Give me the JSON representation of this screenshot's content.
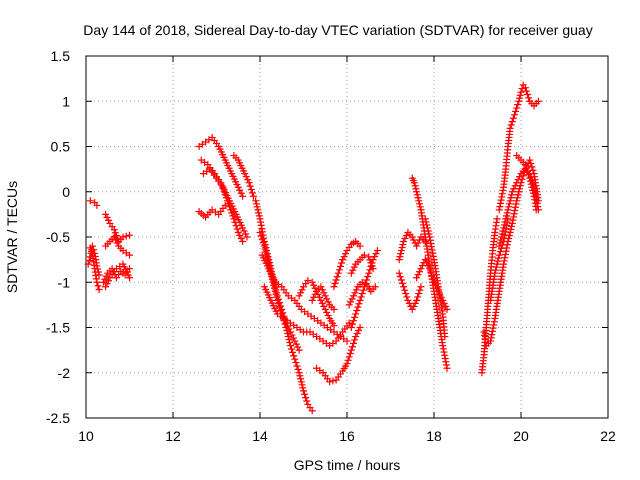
{
  "chart_data": {
    "type": "scatter",
    "title": "Day 144 of 2018, Sidereal Day-to-day VTEC variation (SDTVAR) for receiver guay",
    "xlabel": "GPS time / hours",
    "ylabel": "SDTVAR / TECUs",
    "xlim": [
      10,
      22
    ],
    "ylim": [
      -2.5,
      1.5
    ],
    "xticks": [
      10,
      12,
      14,
      16,
      18,
      20,
      22
    ],
    "xtick_labels": [
      "10",
      "12",
      "14",
      "16",
      "18",
      "20",
      "22"
    ],
    "yticks": [
      -2.5,
      -2,
      -1.5,
      -1,
      -0.5,
      0,
      0.5,
      1,
      1.5
    ],
    "ytick_labels": [
      "-2.5",
      "-2",
      "-1.5",
      "-1",
      "-0.5",
      "0",
      "0.5",
      "1",
      "1.5"
    ],
    "grid": true,
    "marker": "+",
    "color": "#ff0000",
    "series_paths": [
      [
        [
          10.1,
          -0.1
        ],
        [
          10.2,
          -0.12
        ],
        [
          10.25,
          -0.15
        ]
      ],
      [
        [
          10.1,
          -0.62
        ],
        [
          10.15,
          -0.7
        ],
        [
          10.2,
          -0.85
        ],
        [
          10.25,
          -1.0
        ],
        [
          10.3,
          -1.08
        ]
      ],
      [
        [
          10.05,
          -0.8
        ],
        [
          10.1,
          -0.72
        ],
        [
          10.15,
          -0.6
        ],
        [
          10.2,
          -0.68
        ],
        [
          10.25,
          -0.82
        ],
        [
          10.3,
          -0.92
        ]
      ],
      [
        [
          10.45,
          -0.25
        ],
        [
          10.55,
          -0.35
        ],
        [
          10.65,
          -0.42
        ],
        [
          10.75,
          -0.55
        ],
        [
          10.85,
          -0.5
        ],
        [
          11.0,
          -0.48
        ]
      ],
      [
        [
          10.45,
          -0.6
        ],
        [
          10.55,
          -0.55
        ],
        [
          10.65,
          -0.5
        ],
        [
          10.75,
          -0.6
        ],
        [
          10.85,
          -0.65
        ],
        [
          11.0,
          -0.7
        ]
      ],
      [
        [
          10.4,
          -1.0
        ],
        [
          10.5,
          -0.9
        ],
        [
          10.6,
          -0.85
        ],
        [
          10.7,
          -0.95
        ],
        [
          10.8,
          -0.88
        ],
        [
          10.9,
          -0.92
        ],
        [
          11.0,
          -0.85
        ]
      ],
      [
        [
          10.45,
          -1.05
        ],
        [
          10.55,
          -0.95
        ],
        [
          10.7,
          -0.85
        ],
        [
          10.85,
          -0.8
        ],
        [
          11.0,
          -0.95
        ]
      ],
      [
        [
          12.6,
          0.5
        ],
        [
          12.75,
          0.55
        ],
        [
          12.9,
          0.6
        ],
        [
          13.05,
          0.5
        ],
        [
          13.2,
          0.35
        ],
        [
          13.35,
          0.2
        ],
        [
          13.5,
          0.05
        ],
        [
          13.6,
          -0.05
        ]
      ],
      [
        [
          12.7,
          0.2
        ],
        [
          12.85,
          0.25
        ],
        [
          13.0,
          0.15
        ],
        [
          13.15,
          0.05
        ],
        [
          13.3,
          -0.1
        ],
        [
          13.45,
          -0.25
        ],
        [
          13.6,
          -0.4
        ],
        [
          13.7,
          -0.5
        ]
      ],
      [
        [
          12.65,
          0.35
        ],
        [
          12.8,
          0.3
        ],
        [
          12.95,
          0.2
        ],
        [
          13.1,
          0.1
        ],
        [
          13.25,
          -0.1
        ],
        [
          13.4,
          -0.3
        ],
        [
          13.5,
          -0.45
        ],
        [
          13.6,
          -0.55
        ]
      ],
      [
        [
          12.6,
          -0.22
        ],
        [
          12.75,
          -0.28
        ],
        [
          12.9,
          -0.2
        ],
        [
          13.05,
          -0.25
        ],
        [
          13.2,
          -0.15
        ]
      ],
      [
        [
          13.4,
          0.4
        ],
        [
          13.5,
          0.35
        ],
        [
          13.65,
          0.2
        ],
        [
          13.75,
          0.1
        ],
        [
          13.85,
          -0.05
        ]
      ],
      [
        [
          13.9,
          -0.1
        ],
        [
          14.0,
          -0.3
        ],
        [
          14.1,
          -0.55
        ],
        [
          14.2,
          -0.75
        ],
        [
          14.3,
          -0.95
        ],
        [
          14.4,
          -1.15
        ],
        [
          14.5,
          -1.3
        ],
        [
          14.6,
          -1.45
        ],
        [
          14.7,
          -1.55
        ],
        [
          14.8,
          -1.65
        ],
        [
          14.9,
          -1.75
        ]
      ],
      [
        [
          14.0,
          -0.45
        ],
        [
          14.1,
          -0.6
        ],
        [
          14.2,
          -0.8
        ],
        [
          14.3,
          -1.0
        ],
        [
          14.4,
          -1.2
        ],
        [
          14.5,
          -1.35
        ],
        [
          14.6,
          -1.5
        ],
        [
          14.7,
          -1.7
        ],
        [
          14.8,
          -1.85
        ],
        [
          14.9,
          -2.0
        ],
        [
          15.0,
          -2.2
        ],
        [
          15.1,
          -2.35
        ],
        [
          15.2,
          -2.42
        ]
      ],
      [
        [
          14.05,
          -0.7
        ],
        [
          14.2,
          -0.85
        ],
        [
          14.35,
          -1.0
        ],
        [
          14.5,
          -1.05
        ],
        [
          14.65,
          -1.15
        ],
        [
          14.8,
          -1.2
        ],
        [
          14.95,
          -1.3
        ],
        [
          15.1,
          -1.35
        ],
        [
          15.25,
          -1.4
        ],
        [
          15.4,
          -1.45
        ],
        [
          15.55,
          -1.5
        ],
        [
          15.7,
          -1.55
        ],
        [
          15.85,
          -1.6
        ],
        [
          16.0,
          -1.65
        ]
      ],
      [
        [
          14.1,
          -1.05
        ],
        [
          14.25,
          -1.2
        ],
        [
          14.4,
          -1.35
        ],
        [
          14.55,
          -1.4
        ],
        [
          14.7,
          -1.45
        ],
        [
          14.85,
          -1.5
        ],
        [
          15.0,
          -1.55
        ],
        [
          15.15,
          -1.55
        ],
        [
          15.3,
          -1.6
        ],
        [
          15.45,
          -1.65
        ],
        [
          15.6,
          -1.7
        ],
        [
          15.75,
          -1.65
        ],
        [
          15.9,
          -1.55
        ],
        [
          16.05,
          -1.45
        ]
      ],
      [
        [
          14.9,
          -1.15
        ],
        [
          15.0,
          -1.05
        ],
        [
          15.1,
          -0.98
        ],
        [
          15.2,
          -1.0
        ],
        [
          15.3,
          -1.1
        ],
        [
          15.4,
          -1.2
        ],
        [
          15.5,
          -1.3
        ],
        [
          15.6,
          -1.4
        ],
        [
          15.7,
          -1.48
        ]
      ],
      [
        [
          15.2,
          -1.2
        ],
        [
          15.3,
          -1.1
        ],
        [
          15.4,
          -1.05
        ],
        [
          15.5,
          -1.15
        ],
        [
          15.6,
          -1.25
        ],
        [
          15.7,
          -1.3
        ]
      ],
      [
        [
          15.3,
          -1.95
        ],
        [
          15.45,
          -2.0
        ],
        [
          15.6,
          -2.1
        ],
        [
          15.75,
          -2.08
        ],
        [
          15.9,
          -1.98
        ],
        [
          16.0,
          -1.9
        ],
        [
          16.1,
          -1.75
        ],
        [
          16.2,
          -1.6
        ],
        [
          16.3,
          -1.5
        ]
      ],
      [
        [
          15.7,
          -1.05
        ],
        [
          15.8,
          -0.9
        ],
        [
          15.9,
          -0.75
        ],
        [
          16.0,
          -0.65
        ],
        [
          16.1,
          -0.58
        ],
        [
          16.2,
          -0.55
        ],
        [
          16.3,
          -0.6
        ]
      ],
      [
        [
          16.1,
          -1.5
        ],
        [
          16.2,
          -1.35
        ],
        [
          16.3,
          -1.2
        ],
        [
          16.4,
          -1.05
        ],
        [
          16.5,
          -0.9
        ],
        [
          16.6,
          -0.75
        ],
        [
          16.7,
          -0.65
        ]
      ],
      [
        [
          16.05,
          -1.25
        ],
        [
          16.15,
          -1.15
        ],
        [
          16.25,
          -1.05
        ],
        [
          16.35,
          -1.0
        ],
        [
          16.45,
          -1.02
        ],
        [
          16.55,
          -1.1
        ],
        [
          16.65,
          -1.05
        ]
      ],
      [
        [
          16.1,
          -0.9
        ],
        [
          16.2,
          -0.8
        ],
        [
          16.3,
          -0.75
        ],
        [
          16.4,
          -0.7
        ],
        [
          16.5,
          -0.72
        ],
        [
          16.6,
          -0.85
        ]
      ],
      [
        [
          17.2,
          -0.75
        ],
        [
          17.3,
          -0.55
        ],
        [
          17.4,
          -0.45
        ],
        [
          17.5,
          -0.5
        ],
        [
          17.6,
          -0.6
        ],
        [
          17.7,
          -0.5
        ],
        [
          17.8,
          -0.55
        ]
      ],
      [
        [
          17.2,
          -0.9
        ],
        [
          17.3,
          -1.05
        ],
        [
          17.4,
          -1.2
        ],
        [
          17.5,
          -1.3
        ],
        [
          17.6,
          -1.2
        ],
        [
          17.7,
          -1.05
        ]
      ],
      [
        [
          17.5,
          0.15
        ],
        [
          17.55,
          0.1
        ],
        [
          17.6,
          0.0
        ],
        [
          17.7,
          -0.2
        ],
        [
          17.8,
          -0.5
        ],
        [
          17.9,
          -0.8
        ],
        [
          18.0,
          -1.1
        ],
        [
          18.1,
          -1.4
        ],
        [
          18.2,
          -1.7
        ],
        [
          18.3,
          -1.95
        ]
      ],
      [
        [
          17.6,
          -0.95
        ],
        [
          17.7,
          -0.85
        ],
        [
          17.8,
          -0.75
        ],
        [
          17.9,
          -0.85
        ],
        [
          18.0,
          -1.0
        ],
        [
          18.1,
          -1.1
        ],
        [
          18.2,
          -1.2
        ],
        [
          18.3,
          -1.3
        ]
      ],
      [
        [
          17.8,
          -0.3
        ],
        [
          17.9,
          -0.5
        ],
        [
          18.0,
          -0.75
        ],
        [
          18.1,
          -1.05
        ],
        [
          18.2,
          -1.35
        ],
        [
          18.25,
          -1.6
        ]
      ],
      [
        [
          19.1,
          -2.0
        ],
        [
          19.15,
          -1.8
        ],
        [
          19.2,
          -1.5
        ],
        [
          19.25,
          -1.2
        ],
        [
          19.3,
          -0.9
        ],
        [
          19.35,
          -0.65
        ],
        [
          19.4,
          -0.45
        ],
        [
          19.45,
          -0.3
        ]
      ],
      [
        [
          19.15,
          -1.55
        ],
        [
          19.2,
          -1.7
        ],
        [
          19.3,
          -1.65
        ],
        [
          19.4,
          -1.4
        ],
        [
          19.5,
          -1.1
        ],
        [
          19.6,
          -0.8
        ],
        [
          19.7,
          -0.55
        ],
        [
          19.8,
          -0.35
        ],
        [
          19.9,
          -0.1
        ],
        [
          20.0,
          0.1
        ],
        [
          20.1,
          0.25
        ],
        [
          20.2,
          0.35
        ],
        [
          20.3,
          0.2
        ],
        [
          20.4,
          -0.1
        ]
      ],
      [
        [
          19.5,
          -0.6
        ],
        [
          19.6,
          -0.4
        ],
        [
          19.7,
          -0.2
        ],
        [
          19.8,
          0.0
        ],
        [
          19.9,
          0.1
        ],
        [
          20.0,
          0.2
        ],
        [
          20.1,
          0.25
        ],
        [
          20.2,
          0.2
        ],
        [
          20.3,
          0.05
        ],
        [
          20.4,
          -0.2
        ]
      ],
      [
        [
          19.5,
          -0.2
        ],
        [
          19.6,
          0.05
        ],
        [
          19.65,
          0.25
        ],
        [
          19.7,
          0.5
        ],
        [
          19.75,
          0.7
        ],
        [
          19.85,
          0.85
        ],
        [
          19.95,
          1.0
        ],
        [
          20.0,
          1.1
        ],
        [
          20.05,
          1.18
        ],
        [
          20.1,
          1.15
        ],
        [
          20.2,
          1.0
        ],
        [
          20.3,
          0.95
        ],
        [
          20.4,
          1.0
        ]
      ],
      [
        [
          19.3,
          -1.2
        ],
        [
          19.4,
          -0.9
        ],
        [
          19.5,
          -0.7
        ],
        [
          19.6,
          -0.55
        ],
        [
          19.7,
          -0.3
        ]
      ],
      [
        [
          19.9,
          0.4
        ],
        [
          20.0,
          0.35
        ],
        [
          20.1,
          0.3
        ],
        [
          20.2,
          0.15
        ],
        [
          20.3,
          -0.05
        ],
        [
          20.35,
          -0.2
        ]
      ]
    ]
  }
}
